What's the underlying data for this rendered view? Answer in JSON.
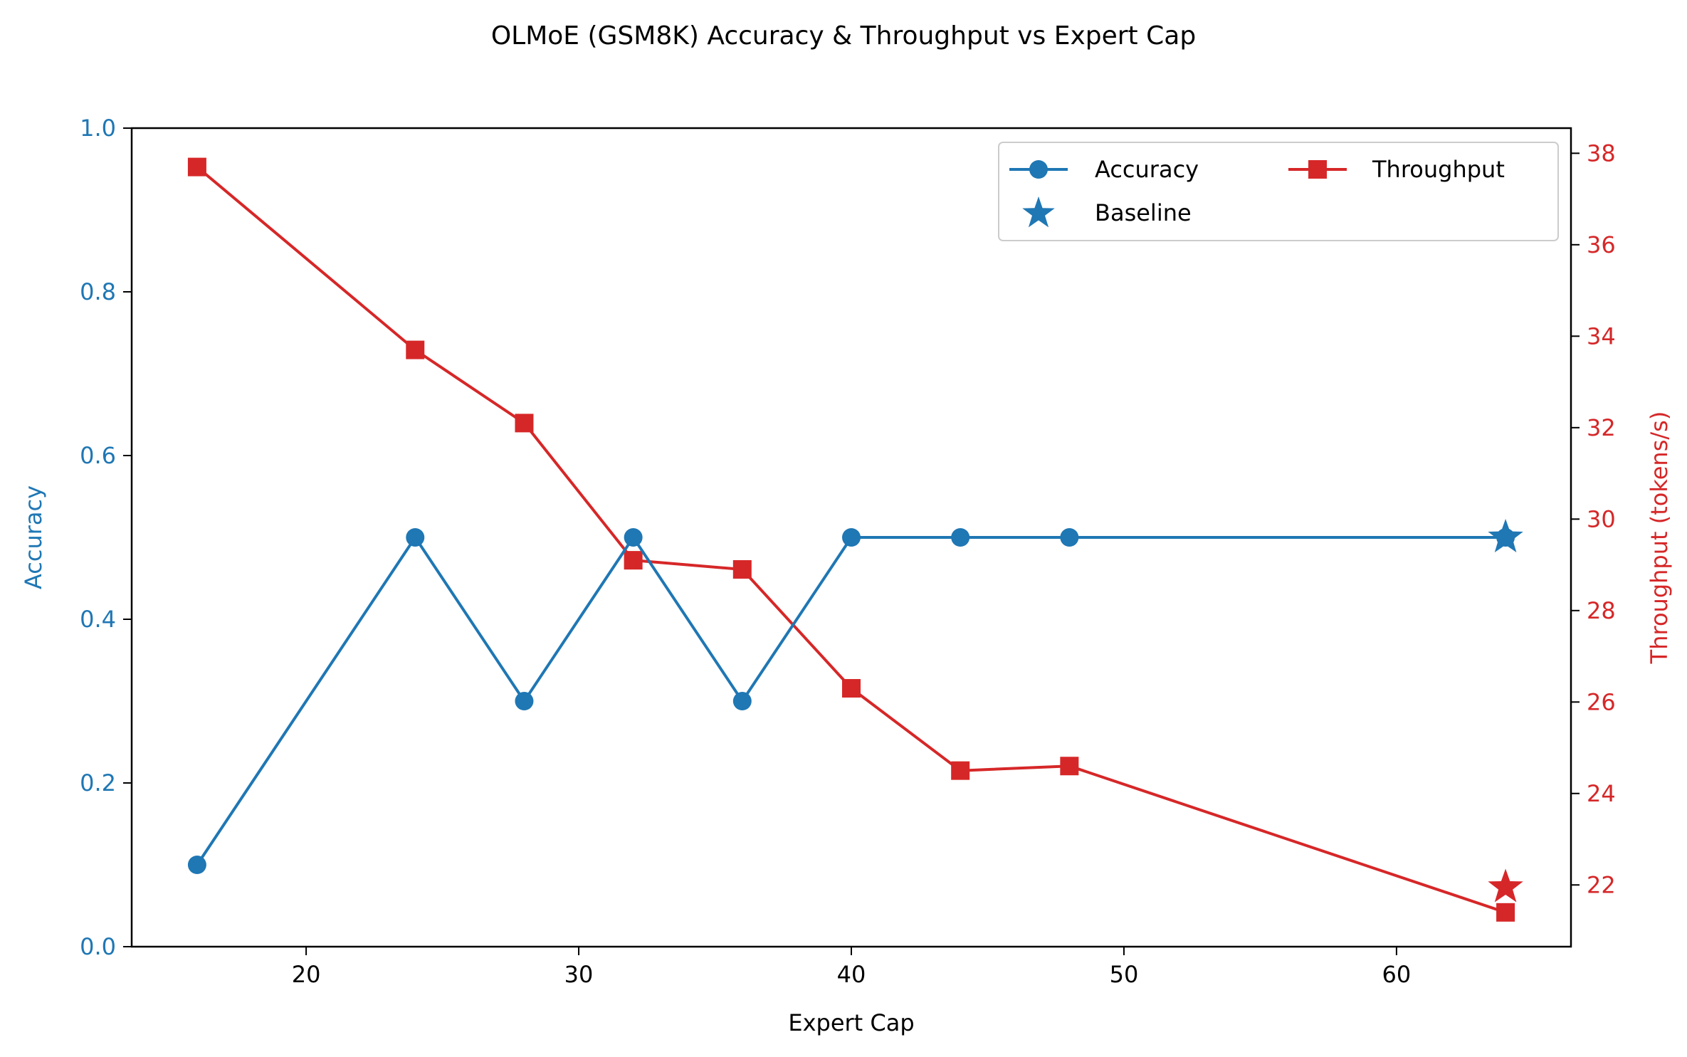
{
  "chart_data": {
    "type": "line",
    "title": "OLMoE (GSM8K) Accuracy & Throughput vs Expert Cap",
    "xlabel": "Expert Cap",
    "ylabel_left": "Accuracy",
    "ylabel_right": "Throughput (tokens/s)",
    "xlim": [
      13.6,
      66.4
    ],
    "ylim_left": [
      0,
      1
    ],
    "ylim_right": [
      20.65,
      38.55
    ],
    "xticks": [
      20,
      30,
      40,
      50,
      60
    ],
    "yticks_left": [
      0.0,
      0.2,
      0.4,
      0.6,
      0.8,
      1.0
    ],
    "yticks_right": [
      22,
      24,
      26,
      28,
      30,
      32,
      34,
      36,
      38
    ],
    "grid": false,
    "legend_position": "top-right",
    "colors": {
      "accuracy": "#1f77b4",
      "throughput": "#d62728"
    },
    "series": [
      {
        "name": "Accuracy",
        "axis": "left",
        "marker": "circle",
        "x": [
          16,
          24,
          28,
          32,
          36,
          40,
          44,
          48,
          64
        ],
        "values": [
          0.1,
          0.5,
          0.3,
          0.5,
          0.3,
          0.5,
          0.5,
          0.5,
          0.5
        ]
      },
      {
        "name": "Throughput",
        "axis": "right",
        "marker": "square",
        "x": [
          16,
          24,
          28,
          32,
          36,
          40,
          44,
          48,
          64
        ],
        "values": [
          37.7,
          33.7,
          32.1,
          29.1,
          28.9,
          26.3,
          24.5,
          24.6,
          21.4
        ]
      }
    ],
    "baseline": {
      "name": "Baseline",
      "marker": "star",
      "x": 64,
      "accuracy": 0.5,
      "throughput": 21.95
    }
  }
}
